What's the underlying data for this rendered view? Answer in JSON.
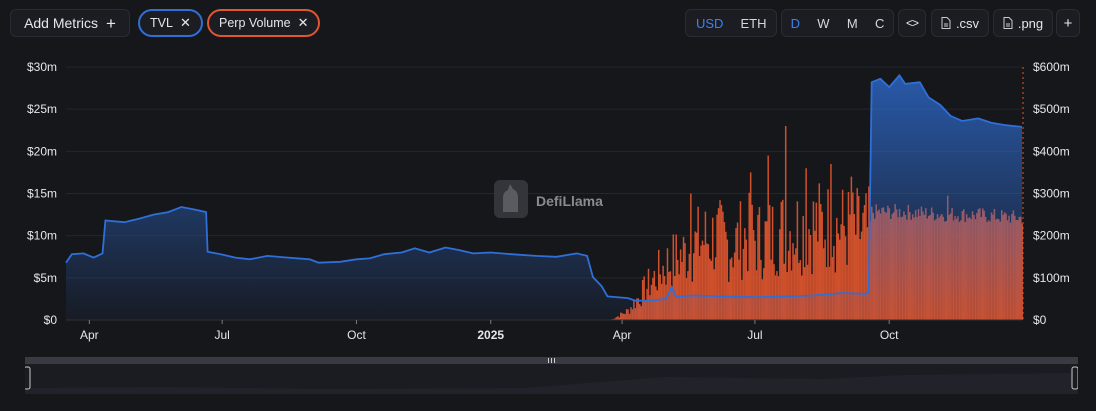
{
  "toolbar": {
    "add_metrics_label": "Add Metrics",
    "add_icon": "plus-icon",
    "metric_pills": [
      {
        "label": "TVL",
        "color": "#2f6fd8"
      },
      {
        "label": "Perp Volume",
        "color": "#e0562e"
      }
    ],
    "currency_options": [
      "USD",
      "ETH"
    ],
    "currency_selected": "USD",
    "period_options": [
      "D",
      "W",
      "M",
      "C"
    ],
    "period_selected": "D",
    "embed_icon": "code-icon",
    "csv_label": ".csv",
    "png_label": ".png",
    "file_icon": "file-icon",
    "more_icon": "plus-icon"
  },
  "watermark": "DefiLlama",
  "colors": {
    "tvl": "#2f6fd8",
    "perp": "#e0562e",
    "background": "#16171b",
    "accent": "#3b82f6"
  },
  "chart_data": {
    "type": "line+bar",
    "x_tick_labels": [
      "Apr",
      "Jul",
      "Oct",
      "2025",
      "Apr",
      "Jul",
      "Oct"
    ],
    "x_range": [
      "2024-03-16",
      "2025-12-31"
    ],
    "left_axis": {
      "label": "TVL",
      "ticks": [
        "$0",
        "$5m",
        "$10m",
        "$15m",
        "$20m",
        "$25m",
        "$30m"
      ],
      "range": [
        0,
        30000000
      ]
    },
    "right_axis": {
      "label": "Perp Volume",
      "ticks": [
        "$0",
        "$100m",
        "$200m",
        "$300m",
        "$400m",
        "$500m",
        "$600m"
      ],
      "range": [
        0,
        600000000
      ]
    },
    "grid": true,
    "series": [
      {
        "name": "TVL",
        "type": "area-line",
        "axis": "left",
        "color": "#2f6fd8",
        "points": [
          [
            "2024-03-16",
            6.8
          ],
          [
            "2024-03-20",
            7.8
          ],
          [
            "2024-03-28",
            7.9
          ],
          [
            "2024-04-04",
            7.4
          ],
          [
            "2024-04-10",
            7.9
          ],
          [
            "2024-04-12",
            11.8
          ],
          [
            "2024-04-25",
            11.6
          ],
          [
            "2024-05-05",
            12.0
          ],
          [
            "2024-05-15",
            12.5
          ],
          [
            "2024-05-25",
            12.8
          ],
          [
            "2024-06-03",
            13.4
          ],
          [
            "2024-06-12",
            13.1
          ],
          [
            "2024-06-20",
            12.8
          ],
          [
            "2024-06-21",
            8.1
          ],
          [
            "2024-06-30",
            7.8
          ],
          [
            "2024-07-10",
            7.4
          ],
          [
            "2024-07-20",
            7.2
          ],
          [
            "2024-08-01",
            7.6
          ],
          [
            "2024-08-15",
            7.4
          ],
          [
            "2024-08-30",
            7.2
          ],
          [
            "2024-09-05",
            6.8
          ],
          [
            "2024-09-20",
            6.9
          ],
          [
            "2024-10-01",
            7.2
          ],
          [
            "2024-10-10",
            7.3
          ],
          [
            "2024-10-20",
            7.8
          ],
          [
            "2024-11-01",
            8.0
          ],
          [
            "2024-11-10",
            8.5
          ],
          [
            "2024-11-20",
            8.0
          ],
          [
            "2024-12-01",
            8.6
          ],
          [
            "2024-12-10",
            8.3
          ],
          [
            "2024-12-20",
            7.9
          ],
          [
            "2025-01-01",
            8.0
          ],
          [
            "2025-01-15",
            7.8
          ],
          [
            "2025-02-01",
            7.6
          ],
          [
            "2025-02-15",
            7.5
          ],
          [
            "2025-03-01",
            7.9
          ],
          [
            "2025-03-08",
            7.6
          ],
          [
            "2025-03-12",
            5.1
          ],
          [
            "2025-03-18",
            4.0
          ],
          [
            "2025-03-22",
            2.8
          ],
          [
            "2025-04-05",
            2.6
          ],
          [
            "2025-04-10",
            2.3
          ],
          [
            "2025-04-20",
            2.3
          ],
          [
            "2025-05-01",
            2.5
          ],
          [
            "2025-05-05",
            3.9
          ],
          [
            "2025-05-08",
            2.8
          ],
          [
            "2025-05-20",
            2.9
          ],
          [
            "2025-06-10",
            2.8
          ],
          [
            "2025-07-01",
            2.7
          ],
          [
            "2025-07-20",
            2.8
          ],
          [
            "2025-08-10",
            2.9
          ],
          [
            "2025-08-30",
            3.2
          ],
          [
            "2025-09-15",
            3.1
          ],
          [
            "2025-09-17",
            3.4
          ],
          [
            "2025-09-19",
            28.2
          ],
          [
            "2025-09-25",
            28.6
          ],
          [
            "2025-10-01",
            27.6
          ],
          [
            "2025-10-08",
            29.0
          ],
          [
            "2025-10-12",
            28.0
          ],
          [
            "2025-10-22",
            28.2
          ],
          [
            "2025-10-28",
            26.4
          ],
          [
            "2025-11-05",
            25.5
          ],
          [
            "2025-11-12",
            24.2
          ],
          [
            "2025-11-20",
            23.6
          ],
          [
            "2025-12-01",
            23.9
          ],
          [
            "2025-12-10",
            23.4
          ],
          [
            "2025-12-20",
            23.1
          ],
          [
            "2025-12-31",
            22.9
          ]
        ]
      },
      {
        "name": "Perp Volume",
        "type": "bar",
        "axis": "right",
        "color": "#e0562e",
        "start_date": "2025-03-24",
        "end_date": "2025-12-31",
        "envelope_points": [
          [
            "2025-03-24",
            0
          ],
          [
            "2025-04-05",
            30
          ],
          [
            "2025-04-20",
            120
          ],
          [
            "2025-05-01",
            180
          ],
          [
            "2025-05-15",
            220
          ],
          [
            "2025-05-25",
            260
          ],
          [
            "2025-06-05",
            270
          ],
          [
            "2025-06-15",
            240
          ],
          [
            "2025-06-25",
            280
          ],
          [
            "2025-07-05",
            260
          ],
          [
            "2025-07-20",
            290
          ],
          [
            "2025-08-01",
            300
          ],
          [
            "2025-08-15",
            310
          ],
          [
            "2025-08-30",
            300
          ],
          [
            "2025-09-10",
            290
          ],
          [
            "2025-09-17",
            290
          ],
          [
            "2025-09-20",
            270
          ],
          [
            "2025-10-10",
            270
          ],
          [
            "2025-11-01",
            265
          ],
          [
            "2025-12-01",
            262
          ],
          [
            "2025-12-31",
            255
          ]
        ],
        "spikes": [
          [
            "2025-05-18",
            300
          ],
          [
            "2025-06-28",
            350
          ],
          [
            "2025-07-10",
            390
          ],
          [
            "2025-07-22",
            460
          ],
          [
            "2025-08-05",
            360
          ],
          [
            "2025-08-22",
            370
          ],
          [
            "2025-09-05",
            340
          ],
          [
            "2025-11-10",
            295
          ]
        ]
      }
    ]
  }
}
